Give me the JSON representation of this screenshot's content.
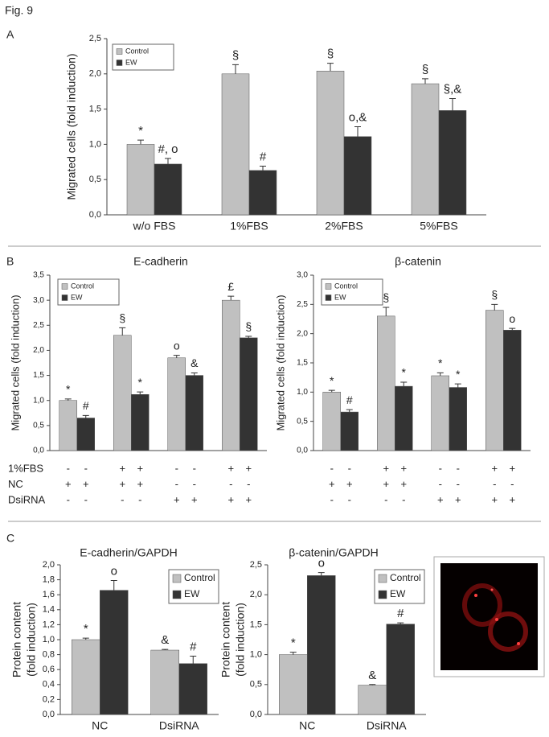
{
  "figure_label": "Fig. 9",
  "panels": [
    "A",
    "B",
    "C"
  ],
  "conditions": {
    "rows": [
      {
        "label": "1%FBS",
        "marks": [
          "-",
          "-",
          "+",
          "+",
          "-",
          "-",
          "+",
          "+"
        ]
      },
      {
        "label": "NC",
        "marks": [
          "+",
          "+",
          "+",
          "+",
          "-",
          "-",
          "-",
          "-"
        ]
      },
      {
        "label": "DsiRNA",
        "marks": [
          "-",
          "-",
          "-",
          "-",
          "+",
          "+",
          "+",
          "+"
        ]
      }
    ]
  },
  "chart_data": [
    {
      "type": "bar",
      "ylabel": "Migrated cells (fold induction)",
      "categories": [
        "w/o FBS",
        "1%FBS",
        "2%FBS",
        "5%FBS"
      ],
      "series": [
        {
          "name": "Control",
          "color": "#c0c0c0",
          "values": [
            1.0,
            2.0,
            2.04,
            1.86
          ],
          "errors": [
            0.06,
            0.13,
            0.11,
            0.07
          ],
          "labels": [
            "*",
            "§",
            "§",
            "§"
          ]
        },
        {
          "name": "EW",
          "color": "#333333",
          "values": [
            0.72,
            0.63,
            1.11,
            1.48
          ],
          "errors": [
            0.08,
            0.06,
            0.14,
            0.17
          ],
          "labels": [
            "#, o",
            "#",
            "o,&",
            "§,&"
          ]
        }
      ],
      "ylim": [
        0,
        2.5
      ],
      "yticks": [
        {
          "value": 0,
          "label": "0,0"
        },
        {
          "value": 0.5,
          "label": "0,5"
        },
        {
          "value": 1,
          "label": "1,0"
        },
        {
          "value": 1.5,
          "label": "1,5"
        },
        {
          "value": 2,
          "label": "2,0"
        },
        {
          "value": 2.5,
          "label": "2,5"
        }
      ],
      "legend": "upper left"
    },
    {
      "type": "bar",
      "title": "E-cadherin",
      "ylabel": "Migrated cells (fold induction)",
      "categories": [
        null,
        null,
        null,
        null
      ],
      "series": [
        {
          "name": "Control",
          "color": "#c0c0c0",
          "values": [
            1.0,
            2.3,
            1.85,
            3.0
          ],
          "errors": [
            0.03,
            0.15,
            0.05,
            0.08
          ],
          "labels": [
            "*",
            "§",
            "o",
            "£"
          ]
        },
        {
          "name": "EW",
          "color": "#333333",
          "values": [
            0.65,
            1.12,
            1.5,
            2.25
          ],
          "errors": [
            0.05,
            0.05,
            0.05,
            0.03
          ],
          "labels": [
            "#",
            "*",
            "&",
            "§"
          ]
        }
      ],
      "ylim": [
        0,
        3.5
      ],
      "yticks": [
        {
          "value": 0,
          "label": "0,0"
        },
        {
          "value": 0.5,
          "label": "0,5"
        },
        {
          "value": 1,
          "label": "1,0"
        },
        {
          "value": 1.5,
          "label": "1,5"
        },
        {
          "value": 2,
          "label": "2,0"
        },
        {
          "value": 2.5,
          "label": "2,5"
        },
        {
          "value": 3,
          "label": "3,0"
        },
        {
          "value": 3.5,
          "label": "3,5"
        }
      ],
      "legend": "upper left"
    },
    {
      "type": "bar",
      "title": "β-catenin",
      "ylabel": "Migrated cells (fold induction)",
      "categories": [
        null,
        null,
        null,
        null
      ],
      "series": [
        {
          "name": "Control",
          "color": "#c0c0c0",
          "values": [
            1.0,
            2.3,
            1.28,
            2.4
          ],
          "errors": [
            0.03,
            0.15,
            0.05,
            0.1
          ],
          "labels": [
            "*",
            "§",
            "*",
            "§"
          ]
        },
        {
          "name": "EW",
          "color": "#333333",
          "values": [
            0.66,
            1.1,
            1.08,
            2.06
          ],
          "errors": [
            0.04,
            0.07,
            0.06,
            0.03
          ],
          "labels": [
            "#",
            "*",
            "*",
            "o"
          ]
        }
      ],
      "ylim": [
        0,
        3.0
      ],
      "yticks": [
        {
          "value": 0,
          "label": "0,0"
        },
        {
          "value": 0.5,
          "label": "0,5"
        },
        {
          "value": 1,
          "label": "1,0"
        },
        {
          "value": 1.5,
          "label": "1,5"
        },
        {
          "value": 2,
          "label": "2,0"
        },
        {
          "value": 2.5,
          "label": "2,5"
        },
        {
          "value": 3,
          "label": "3,0"
        }
      ],
      "legend": "upper left"
    },
    {
      "type": "bar",
      "title": "E-cadherin/GAPDH",
      "ylabel": [
        "Protein content",
        "(fold induction)"
      ],
      "categories": [
        "NC",
        "DsiRNA"
      ],
      "series": [
        {
          "name": "Control",
          "color": "#c0c0c0",
          "values": [
            1.0,
            0.86
          ],
          "errors": [
            0.02,
            0.01
          ],
          "labels": [
            "*",
            "&"
          ]
        },
        {
          "name": "EW",
          "color": "#333333",
          "values": [
            1.66,
            0.68
          ],
          "errors": [
            0.13,
            0.1
          ],
          "labels": [
            "o",
            "#"
          ]
        }
      ],
      "ylim": [
        0,
        2.0
      ],
      "yticks": [
        {
          "value": 0,
          "label": "0,0"
        },
        {
          "value": 0.2,
          "label": "0,2"
        },
        {
          "value": 0.4,
          "label": "0,4"
        },
        {
          "value": 0.6,
          "label": "0,6"
        },
        {
          "value": 0.8,
          "label": "0,8"
        },
        {
          "value": 1,
          "label": "1,0"
        },
        {
          "value": 1.2,
          "label": "1,2"
        },
        {
          "value": 1.4,
          "label": "1,4"
        },
        {
          "value": 1.6,
          "label": "1,6"
        },
        {
          "value": 1.8,
          "label": "1,8"
        },
        {
          "value": 2,
          "label": "2,0"
        }
      ],
      "legend": "upper right"
    },
    {
      "type": "bar",
      "title": "β-catenin/GAPDH",
      "ylabel": [
        "Protein content",
        "(fold induction)"
      ],
      "categories": [
        "NC",
        "DsiRNA"
      ],
      "series": [
        {
          "name": "Control",
          "color": "#c0c0c0",
          "values": [
            1.0,
            0.49
          ],
          "errors": [
            0.04,
            0.01
          ],
          "labels": [
            "*",
            "&"
          ]
        },
        {
          "name": "EW",
          "color": "#333333",
          "values": [
            2.32,
            1.51
          ],
          "errors": [
            0.05,
            0.02
          ],
          "labels": [
            "o",
            "#"
          ]
        }
      ],
      "ylim": [
        0,
        2.5
      ],
      "yticks": [
        {
          "value": 0,
          "label": "0,0"
        },
        {
          "value": 0.5,
          "label": "0,5"
        },
        {
          "value": 1,
          "label": "1,0"
        },
        {
          "value": 1.5,
          "label": "1,5"
        },
        {
          "value": 2,
          "label": "2,0"
        },
        {
          "value": 2.5,
          "label": "2,5"
        }
      ],
      "legend": "upper right"
    }
  ]
}
